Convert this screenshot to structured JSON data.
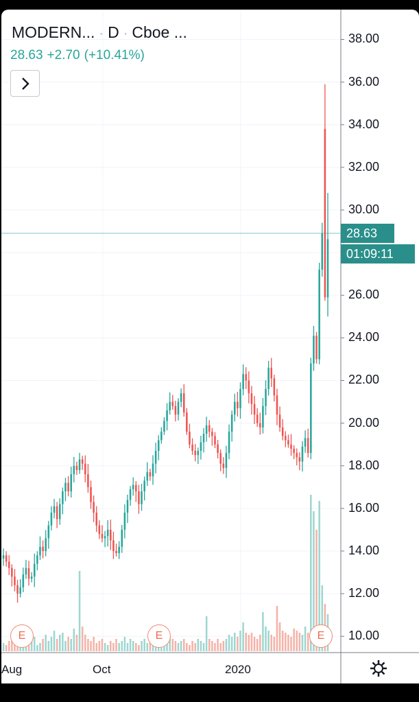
{
  "header": {
    "symbol": "MODERN...",
    "interval": "D",
    "exchange": "Cboe ...",
    "last": "28.63",
    "change": "+2.70",
    "change_pct": "(+10.41%)"
  },
  "price_tag": "28.63",
  "countdown_tag": "01:09:11",
  "event_badge_label": "E",
  "colors": {
    "up": "#26a69a",
    "down": "#ef5350",
    "tag": "#2a8f8a"
  },
  "icons": {
    "nav": "chevron-right-icon",
    "settings": "gear-icon"
  },
  "chart_data": {
    "type": "candlestick",
    "ylim": [
      9.3,
      39.4
    ],
    "y_ticks": [
      "38.00",
      "36.00",
      "34.00",
      "32.00",
      "30.00",
      "28.00",
      "26.00",
      "24.00",
      "22.00",
      "20.00",
      "18.00",
      "16.00",
      "14.00",
      "12.00",
      "10.00"
    ],
    "x_ticks": [
      "Aug",
      "Oct",
      "2020"
    ],
    "last_price": 28.63,
    "closes": [
      13.8,
      13.5,
      13.2,
      12.8,
      12.4,
      12.0,
      12.3,
      12.9,
      13.2,
      12.7,
      12.8,
      13.4,
      13.8,
      14.2,
      14.0,
      14.6,
      15.2,
      15.8,
      16.1,
      15.5,
      16.2,
      16.8,
      17.2,
      16.8,
      17.6,
      18.0,
      17.8,
      18.3,
      18.1,
      17.6,
      17.0,
      16.3,
      15.8,
      15.2,
      14.8,
      14.6,
      14.7,
      15.0,
      14.5,
      14.0,
      13.9,
      14.2,
      15.0,
      15.8,
      16.4,
      16.9,
      17.1,
      16.8,
      16.2,
      16.8,
      17.3,
      17.7,
      17.5,
      18.1,
      18.7,
      19.2,
      19.6,
      20.1,
      20.6,
      21.0,
      20.8,
      20.4,
      21.0,
      21.4,
      20.5,
      19.6,
      19.0,
      18.7,
      18.5,
      18.7,
      19.1,
      19.5,
      19.9,
      19.6,
      19.4,
      19.0,
      18.6,
      18.1,
      17.9,
      18.6,
      19.6,
      20.4,
      21.0,
      20.7,
      21.6,
      22.3,
      22.0,
      21.4,
      20.9,
      20.4,
      20.0,
      19.8,
      20.8,
      21.6,
      22.6,
      22.1,
      21.3,
      20.4,
      19.8,
      19.4,
      19.2,
      19.0,
      18.8,
      18.6,
      18.4,
      18.2,
      18.9,
      19.3,
      18.6,
      22.8,
      24.1,
      23.0,
      27.2,
      28.9,
      25.9,
      28.63
    ],
    "volume": [
      0.4,
      0.3,
      0.5,
      0.6,
      0.4,
      0.8,
      0.5,
      0.3,
      0.6,
      0.4,
      0.5,
      0.7,
      0.3,
      0.4,
      0.6,
      0.8,
      0.5,
      0.7,
      1.0,
      0.6,
      0.8,
      0.9,
      0.5,
      0.7,
      0.6,
      1.1,
      0.8,
      3.9,
      1.2,
      0.8,
      0.6,
      0.5,
      0.7,
      0.4,
      0.5,
      0.6,
      0.4,
      0.3,
      0.5,
      0.4,
      0.6,
      0.4,
      0.5,
      0.7,
      0.4,
      0.6,
      0.5,
      0.4,
      0.3,
      0.5,
      0.6,
      0.4,
      0.5,
      0.7,
      0.6,
      0.4,
      0.6,
      0.5,
      0.8,
      0.7,
      0.6,
      0.5,
      0.4,
      0.5,
      0.6,
      0.4,
      0.3,
      0.5,
      0.4,
      0.6,
      0.5,
      0.4,
      1.7,
      0.6,
      0.5,
      0.4,
      0.6,
      0.4,
      0.5,
      0.6,
      0.8,
      0.7,
      0.9,
      0.7,
      1.0,
      1.4,
      0.9,
      0.8,
      0.9,
      0.7,
      0.6,
      0.8,
      1.9,
      1.2,
      1.0,
      0.8,
      0.7,
      2.2,
      1.4,
      1.0,
      0.9,
      0.8,
      0.7,
      1.1,
      1.0,
      0.9,
      0.8,
      1.2,
      0.9,
      7.6,
      6.8,
      5.9,
      7.3,
      3.2,
      2.3,
      1.8
    ]
  }
}
